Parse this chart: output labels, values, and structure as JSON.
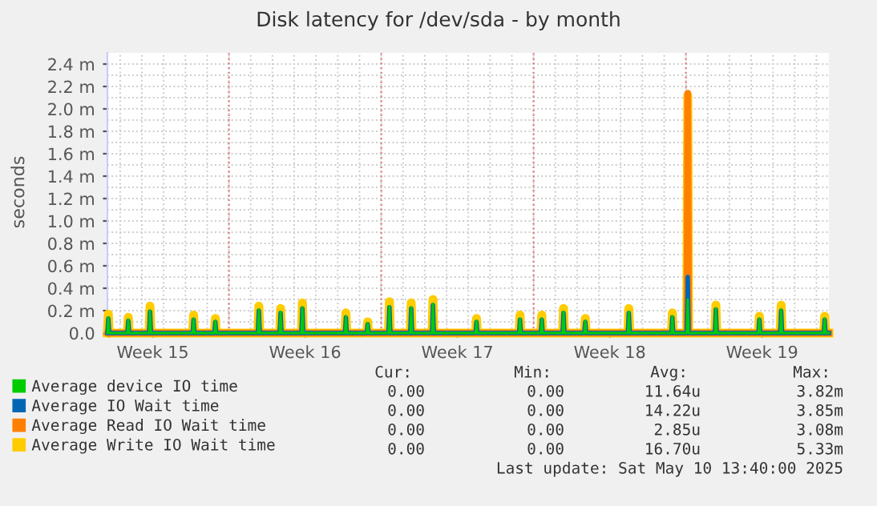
{
  "chart_data": {
    "type": "line",
    "title": "Disk latency for /dev/sda - by month",
    "ylabel": "seconds",
    "x": [
      "2025-04-08T10:00",
      "2025-04-08T11:00",
      "2025-04-08T12:00",
      "2025-04-09T08:00",
      "2025-04-09T09:00",
      "2025-04-09T10:00",
      "2025-04-10T08:00",
      "2025-04-10T09:00",
      "2025-04-10T10:00",
      "2025-04-12T08:00",
      "2025-04-12T09:00",
      "2025-04-12T10:00",
      "2025-04-13T08:00",
      "2025-04-13T09:00",
      "2025-04-13T10:00",
      "2025-04-15T08:00",
      "2025-04-15T09:00",
      "2025-04-15T10:00",
      "2025-04-16T08:00",
      "2025-04-16T09:00",
      "2025-04-16T10:00",
      "2025-04-17T08:00",
      "2025-04-17T09:00",
      "2025-04-17T10:00",
      "2025-04-19T08:00",
      "2025-04-19T09:00",
      "2025-04-19T10:00",
      "2025-04-20T08:00",
      "2025-04-20T09:00",
      "2025-04-20T10:00",
      "2025-04-21T08:00",
      "2025-04-21T09:00",
      "2025-04-21T10:00",
      "2025-04-22T08:00",
      "2025-04-22T09:00",
      "2025-04-22T10:00",
      "2025-04-23T08:00",
      "2025-04-23T09:00",
      "2025-04-23T10:00",
      "2025-04-25T08:00",
      "2025-04-25T09:00",
      "2025-04-25T10:00",
      "2025-04-27T08:00",
      "2025-04-27T09:00",
      "2025-04-27T10:00",
      "2025-04-28T08:00",
      "2025-04-28T09:00",
      "2025-04-28T10:00",
      "2025-04-29T08:00",
      "2025-04-29T09:00",
      "2025-04-29T10:00",
      "2025-04-30T08:00",
      "2025-04-30T09:00",
      "2025-04-30T10:00",
      "2025-05-02T08:00",
      "2025-05-02T09:00",
      "2025-05-02T10:00",
      "2025-05-04T08:00",
      "2025-05-04T09:00",
      "2025-05-04T10:00",
      "2025-05-05T01:00",
      "2025-05-05T02:00",
      "2025-05-05T03:00",
      "2025-05-06T08:00",
      "2025-05-06T09:00",
      "2025-05-06T10:00",
      "2025-05-08T08:00",
      "2025-05-08T09:00",
      "2025-05-08T10:00",
      "2025-05-09T08:00",
      "2025-05-09T09:00",
      "2025-05-09T10:00",
      "2025-05-11T08:00",
      "2025-05-11T09:00",
      "2025-05-11T10:00",
      "2025-05-11T13:40"
    ],
    "series": [
      {
        "name": "Average device IO time",
        "color": "#00cc00",
        "values": [
          0,
          0.14,
          0,
          0,
          0.12,
          0,
          0,
          0.2,
          0,
          0,
          0.13,
          0,
          0,
          0.11,
          0,
          0,
          0.21,
          0,
          0,
          0.19,
          0,
          0,
          0.23,
          0,
          0,
          0.15,
          0,
          0,
          0.09,
          0,
          0,
          0.24,
          0,
          0,
          0.23,
          0,
          0,
          0.26,
          0,
          0,
          0.11,
          0,
          0,
          0.13,
          0,
          0,
          0.13,
          0,
          0,
          0.19,
          0,
          0,
          0.11,
          0,
          0,
          0.19,
          0,
          0,
          0.15,
          0,
          0,
          0.3,
          0,
          0,
          0.22,
          0,
          0,
          0.13,
          0,
          0,
          0.21,
          0,
          0,
          0.13,
          0,
          0
        ]
      },
      {
        "name": "Average IO Wait time",
        "color": "#0066b3",
        "values": [
          0,
          0.13,
          0,
          0,
          0.11,
          0,
          0,
          0.19,
          0,
          0,
          0.12,
          0,
          0,
          0.1,
          0,
          0,
          0.2,
          0,
          0,
          0.18,
          0,
          0,
          0.22,
          0,
          0,
          0.14,
          0,
          0,
          0.08,
          0,
          0,
          0.23,
          0,
          0,
          0.22,
          0,
          0,
          0.25,
          0,
          0,
          0.1,
          0,
          0,
          0.12,
          0,
          0,
          0.12,
          0,
          0,
          0.18,
          0,
          0,
          0.1,
          0,
          0,
          0.18,
          0,
          0,
          0.14,
          0,
          0,
          0.5,
          0,
          0,
          0.21,
          0,
          0,
          0.12,
          0,
          0,
          0.2,
          0,
          0,
          0.12,
          0,
          0
        ]
      },
      {
        "name": "Average Read IO Wait time",
        "color": "#ff8000",
        "values": [
          0,
          0.02,
          0,
          0,
          0.02,
          0,
          0,
          0.03,
          0,
          0,
          0.02,
          0,
          0,
          0.02,
          0,
          0,
          0.03,
          0,
          0,
          0.03,
          0,
          0,
          0.03,
          0,
          0,
          0.02,
          0,
          0,
          0.01,
          0,
          0,
          0.03,
          0,
          0,
          0.03,
          0,
          0,
          0.03,
          0,
          0,
          0.02,
          0,
          0,
          0.02,
          0,
          0,
          0.02,
          0,
          0,
          0.03,
          0,
          0,
          0.02,
          0,
          0,
          0.03,
          0,
          0,
          0.02,
          0,
          0,
          2.14,
          0,
          0,
          0.03,
          0,
          0,
          0.02,
          0,
          0,
          0.03,
          0,
          0,
          0.02,
          0,
          0
        ]
      },
      {
        "name": "Average Write IO Wait time",
        "color": "#ffcc00",
        "values": [
          0,
          0.17,
          0,
          0,
          0.14,
          0,
          0,
          0.24,
          0,
          0,
          0.16,
          0,
          0,
          0.13,
          0,
          0,
          0.24,
          0,
          0,
          0.22,
          0,
          0,
          0.27,
          0,
          0,
          0.18,
          0,
          0,
          0.1,
          0,
          0,
          0.28,
          0,
          0,
          0.27,
          0,
          0,
          0.3,
          0,
          0,
          0.13,
          0,
          0,
          0.16,
          0,
          0,
          0.16,
          0,
          0,
          0.22,
          0,
          0,
          0.13,
          0,
          0,
          0.22,
          0,
          0,
          0.18,
          0,
          0,
          2.12,
          0,
          0,
          0.25,
          0,
          0,
          0.15,
          0,
          0,
          0.25,
          0,
          0,
          0.15,
          0,
          0
        ]
      }
    ],
    "xlim": [
      "2025-04-08T10:00",
      "2025-05-11T13:40"
    ],
    "xticks": [
      {
        "value": "2025-04-10T12:00",
        "label": "Week 15"
      },
      {
        "value": "2025-04-17T12:00",
        "label": "Week 16"
      },
      {
        "value": "2025-04-24T12:00",
        "label": "Week 17"
      },
      {
        "value": "2025-05-01T12:00",
        "label": "Week 18"
      },
      {
        "value": "2025-05-08T12:00",
        "label": "Week 19"
      }
    ],
    "ylim": [
      0,
      2.5
    ],
    "yticks": [
      {
        "value": 0,
        "label": "0.0"
      },
      {
        "value": 0.2,
        "label": "0.2 m"
      },
      {
        "value": 0.4,
        "label": "0.4 m"
      },
      {
        "value": 0.6,
        "label": "0.6 m"
      },
      {
        "value": 0.8,
        "label": "0.8 m"
      },
      {
        "value": 1.0,
        "label": "1.0 m"
      },
      {
        "value": 1.2,
        "label": "1.2 m"
      },
      {
        "value": 1.4,
        "label": "1.4 m"
      },
      {
        "value": 1.6,
        "label": "1.6 m"
      },
      {
        "value": 1.8,
        "label": "1.8 m"
      },
      {
        "value": 2.0,
        "label": "2.0 m"
      },
      {
        "value": 2.2,
        "label": "2.2 m"
      },
      {
        "value": 2.4,
        "label": "2.4 m"
      }
    ],
    "ref_lines": [
      {
        "axis": "x",
        "value": "2025-04-14T00:00",
        "color": "#e08080",
        "line_style": "dotted"
      },
      {
        "axis": "x",
        "value": "2025-04-21T00:00",
        "color": "#e08080",
        "line_style": "dotted"
      },
      {
        "axis": "x",
        "value": "2025-04-28T00:00",
        "color": "#e08080",
        "line_style": "dotted"
      },
      {
        "axis": "x",
        "value": "2025-05-05T00:00",
        "color": "#e08080",
        "line_style": "dotted"
      }
    ],
    "grid": true,
    "legend": "bottom left",
    "marker": "none",
    "line_style": "solid",
    "annotations": [
      "Cur:",
      "Min:",
      "Avg:",
      "Max:",
      "0.00",
      "0.00",
      "11.64u",
      "3.82m",
      "0.00",
      "0.00",
      "14.22u",
      "3.85m",
      "0.00",
      "0.00",
      "2.85u",
      "3.08m",
      "0.00",
      "0.00",
      "16.70u",
      "5.33m",
      "Last update: Sat May 10 13:40:00 2025"
    ]
  }
}
